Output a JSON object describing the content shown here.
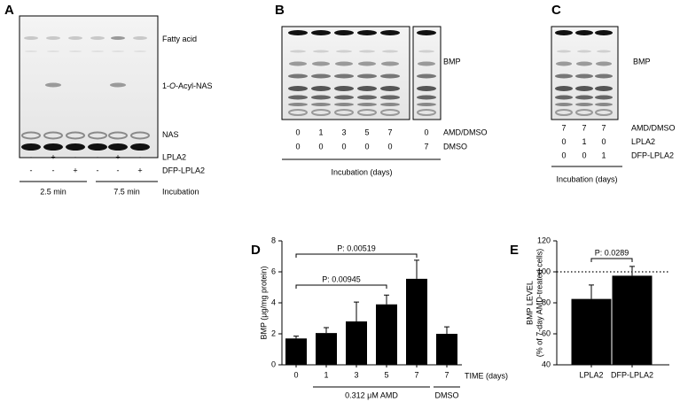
{
  "panels": {
    "A": {
      "label": "A",
      "bands": [
        {
          "parts": [
            "Fatty acid"
          ]
        },
        {
          "parts": [
            "1-",
            "O",
            "-Acyl-NAS"
          ]
        },
        {
          "parts": [
            "NAS"
          ]
        }
      ],
      "rows": [
        {
          "label": "LPLA2",
          "signs": [
            "-",
            "+",
            "-",
            "-",
            "+",
            "-"
          ]
        },
        {
          "label": "DFP-LPLA2",
          "signs": [
            "-",
            "-",
            "+",
            "-",
            "-",
            "+"
          ]
        }
      ],
      "groups": [
        "2.5 min",
        "7.5 min"
      ],
      "group_title": "Incubation"
    },
    "B": {
      "label": "B",
      "band": "BMP",
      "rows": [
        {
          "label": "AMD/DMSO",
          "values": [
            "0",
            "1",
            "3",
            "5",
            "7",
            "0"
          ]
        },
        {
          "label": "DMSO",
          "values": [
            "0",
            "0",
            "0",
            "0",
            "0",
            "7"
          ]
        }
      ],
      "footer": "Incubation (days)"
    },
    "C": {
      "label": "C",
      "band": "BMP",
      "rows": [
        {
          "label": "AMD/DMSO",
          "values": [
            "7",
            "7",
            "7"
          ]
        },
        {
          "label": "LPLA2",
          "values": [
            "0",
            "1",
            "0"
          ]
        },
        {
          "label": "DFP-LPLA2",
          "values": [
            "0",
            "0",
            "1"
          ]
        }
      ],
      "footer": "Incubation (days)"
    }
  },
  "chart_data": [
    {
      "type": "bar",
      "panel": "D",
      "y_label": "BMP (μg/mg protein)",
      "x_label": "TIME (days)",
      "categories": [
        "0",
        "1",
        "3",
        "5",
        "7",
        "7"
      ],
      "values": [
        1.7,
        2.05,
        2.8,
        3.9,
        5.55,
        2.0
      ],
      "errors": [
        0.15,
        0.35,
        1.25,
        0.6,
        1.2,
        0.45
      ],
      "color": "#000000",
      "ylim": [
        0,
        8
      ],
      "yticks": [
        0,
        2,
        4,
        6,
        8
      ],
      "groups": [
        "0.312 μM AMD",
        "DMSO"
      ],
      "annotations": [
        "P: 0.00945",
        "P: 0.00519"
      ]
    },
    {
      "type": "bar",
      "panel": "E",
      "y_label": [
        "BMP LEVEL",
        "(% of 7-day AMD-treated cells)"
      ],
      "categories": [
        "LPLA2",
        "DFP-LPLA2"
      ],
      "values": [
        82.5,
        97.5
      ],
      "errors": [
        9,
        6
      ],
      "color": "#000000",
      "ylim": [
        40,
        120
      ],
      "yticks": [
        40,
        60,
        80,
        100,
        120
      ],
      "reference_line": 100,
      "annotations": [
        "P: 0.0289"
      ]
    }
  ]
}
